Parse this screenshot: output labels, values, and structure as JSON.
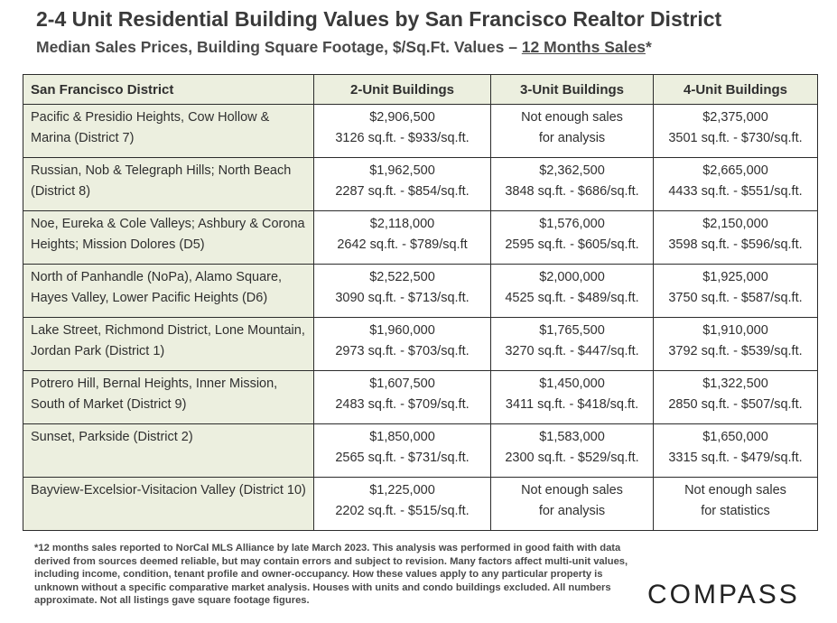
{
  "header": {
    "title": "2-4 Unit Residential Building Values by San Francisco Realtor District",
    "subtitle_prefix": "Median Sales Prices, Building Square Footage, $/Sq.Ft. Values – ",
    "subtitle_underlined": "12 Months Sales",
    "subtitle_suffix": "*"
  },
  "table": {
    "columns": [
      "San Francisco District",
      "2-Unit Buildings",
      "3-Unit Buildings",
      "4-Unit Buildings"
    ],
    "rows": [
      {
        "district": "Pacific & Presidio Heights, Cow Hollow & Marina (District 7)",
        "u2": [
          "$2,906,500",
          "3126 sq.ft. - $933/sq.ft."
        ],
        "u3": [
          "Not enough sales",
          "for analysis"
        ],
        "u4": [
          "$2,375,000",
          "3501 sq.ft. - $730/sq.ft."
        ]
      },
      {
        "district": "Russian, Nob & Telegraph Hills; North Beach (District 8)",
        "u2": [
          "$1,962,500",
          "2287 sq.ft. - $854/sq.ft."
        ],
        "u3": [
          "$2,362,500",
          "3848 sq.ft. - $686/sq.ft."
        ],
        "u4": [
          "$2,665,000",
          "4433 sq.ft. - $551/sq.ft."
        ]
      },
      {
        "district": "Noe, Eureka & Cole Valleys; Ashbury & Corona Heights; Mission Dolores (D5)",
        "u2": [
          "$2,118,000",
          "2642 sq.ft. - $789/sq.ft"
        ],
        "u3": [
          "$1,576,000",
          "2595 sq.ft. - $605/sq.ft."
        ],
        "u4": [
          "$2,150,000",
          "3598 sq.ft. - $596/sq.ft."
        ]
      },
      {
        "district": "North of Panhandle (NoPa), Alamo Square, Hayes Valley, Lower Pacific Heights (D6)",
        "u2": [
          "$2,522,500",
          "3090 sq.ft. - $713/sq.ft."
        ],
        "u3": [
          "$2,000,000",
          "4525 sq.ft. - $489/sq.ft."
        ],
        "u4": [
          "$1,925,000",
          "3750 sq.ft. - $587/sq.ft."
        ]
      },
      {
        "district": "Lake Street, Richmond District, Lone Mountain, Jordan Park (District 1)",
        "u2": [
          "$1,960,000",
          "2973 sq.ft. - $703/sq.ft."
        ],
        "u3": [
          "$1,765,500",
          "3270 sq.ft. - $447/sq.ft."
        ],
        "u4": [
          "$1,910,000",
          "3792 sq.ft. - $539/sq.ft."
        ]
      },
      {
        "district": "Potrero Hill, Bernal Heights, Inner Mission, South of Market (District 9)",
        "u2": [
          "$1,607,500",
          "2483 sq.ft. - $709/sq.ft."
        ],
        "u3": [
          "$1,450,000",
          "3411 sq.ft. - $418/sq.ft."
        ],
        "u4": [
          "$1,322,500",
          "2850 sq.ft. - $507/sq.ft."
        ]
      },
      {
        "district": "Sunset, Parkside (District 2)",
        "u2": [
          "$1,850,000",
          "2565 sq.ft. - $731/sq.ft."
        ],
        "u3": [
          "$1,583,000",
          "2300 sq.ft. - $529/sq.ft."
        ],
        "u4": [
          "$1,650,000",
          "3315 sq.ft. - $479/sq.ft."
        ]
      },
      {
        "district": "Bayview-Excelsior-Visitacion Valley (District 10)",
        "u2": [
          "$1,225,000",
          "2202 sq.ft. - $515/sq.ft."
        ],
        "u3": [
          "Not enough sales",
          "for analysis"
        ],
        "u4": [
          "Not enough sales",
          "for statistics"
        ]
      }
    ]
  },
  "footnote": "*12 months sales reported to NorCal MLS Alliance by late March 2023. This analysis was performed in good faith with data derived from sources deemed reliable, but may contain errors and subject to revision. Many factors affect multi-unit values, including income, condition, tenant profile and owner-occupancy. How these values apply to any particular property is unknown without a specific comparative market analysis. Houses with units and condo buildings excluded. All numbers approximate. Not all listings gave square footage figures.",
  "brand": {
    "logo_text": "COMPASS"
  }
}
